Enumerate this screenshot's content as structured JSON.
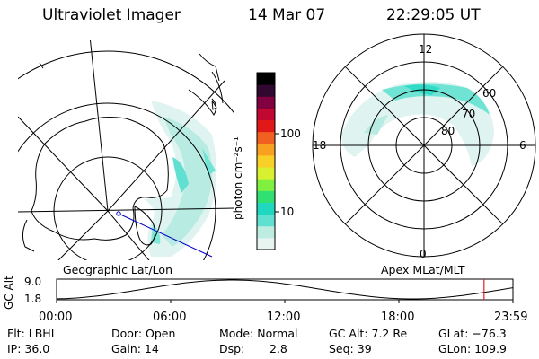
{
  "header": {
    "title": "Ultraviolet Imager",
    "date": "14 Mar 07",
    "time": "22:29:05 UT"
  },
  "colorbar": {
    "label": "photon cm⁻²s⁻¹",
    "ticks": [
      "100",
      "10"
    ],
    "colors": [
      "#e8f4f0",
      "#bdece0",
      "#5fe0d0",
      "#20d8c0",
      "#30e070",
      "#80f040",
      "#d8f030",
      "#f8d028",
      "#f8a020",
      "#f06020",
      "#e01818",
      "#c00830",
      "#800040",
      "#300830",
      "#000000"
    ]
  },
  "left_map": {
    "caption": "Geographic Lat/Lon"
  },
  "right_map": {
    "caption": "Apex MLat/MLT",
    "mlt_labels": {
      "top": "12",
      "left": "18",
      "right": "6",
      "bottom": "0"
    },
    "lat_labels": [
      "60",
      "70",
      "80"
    ]
  },
  "timeline": {
    "ylabel": "GC Alt",
    "y_ticks": [
      "9.0",
      "1.8"
    ],
    "x_ticks": [
      "00:00",
      "06:00",
      "12:00",
      "18:00",
      "23:59"
    ],
    "current_time_hours": 22.48,
    "marker_color": "#e02020"
  },
  "status": {
    "flt": "Flt: LBHL",
    "ip": "IP: 36.0",
    "door": "Door: Open",
    "gain": "Gain: 14",
    "mode": "Mode: Normal",
    "dsp_label": "Dsp:",
    "dsp_value": "2.8",
    "gc_alt": "GC Alt: 7.2 Re",
    "seq": "Seq: 39",
    "glat": "GLat: −76.3",
    "glon": "GLon: 109.9"
  }
}
